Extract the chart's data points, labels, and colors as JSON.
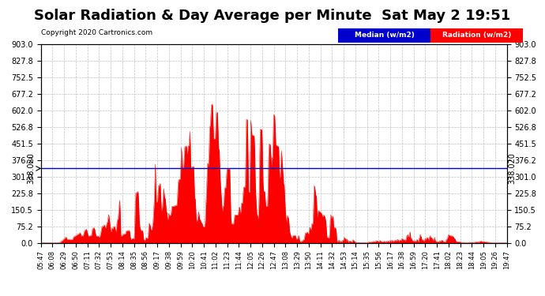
{
  "title": "Solar Radiation & Day Average per Minute  Sat May 2 19:51",
  "copyright": "Copyright 2020 Cartronics.com",
  "median_value": 338.02,
  "ymax": 903.0,
  "ymin": 0.0,
  "yticks": [
    0.0,
    75.2,
    150.5,
    225.8,
    301.0,
    376.2,
    451.5,
    526.8,
    602.0,
    677.2,
    752.5,
    827.8,
    903.0
  ],
  "ytick_labels": [
    "0.0",
    "75.2",
    "150.5",
    "225.8",
    "301.0",
    "376.2",
    "451.5",
    "526.8",
    "602.0",
    "677.2",
    "752.5",
    "827.8",
    "903.0"
  ],
  "background_color": "#ffffff",
  "fill_color": "#ff0000",
  "median_color": "#0000cc",
  "legend_median_bg": "#0000cc",
  "legend_radiation_bg": "#ff0000",
  "legend_median_text": "Median (w/m2)",
  "legend_radiation_text": "Radiation (w/m2)",
  "title_fontsize": 13,
  "median_label": "338.020",
  "xtick_labels": [
    "05:47",
    "06:08",
    "06:29",
    "06:50",
    "07:11",
    "07:32",
    "07:53",
    "08:14",
    "08:35",
    "08:56",
    "09:17",
    "09:38",
    "09:59",
    "10:20",
    "10:41",
    "11:02",
    "11:23",
    "11:44",
    "12:05",
    "12:26",
    "12:47",
    "13:08",
    "13:29",
    "13:50",
    "14:11",
    "14:32",
    "14:53",
    "15:14",
    "15:35",
    "15:56",
    "16:17",
    "16:38",
    "16:59",
    "17:20",
    "17:41",
    "18:02",
    "18:23",
    "18:44",
    "19:05",
    "19:26",
    "19:47"
  ]
}
